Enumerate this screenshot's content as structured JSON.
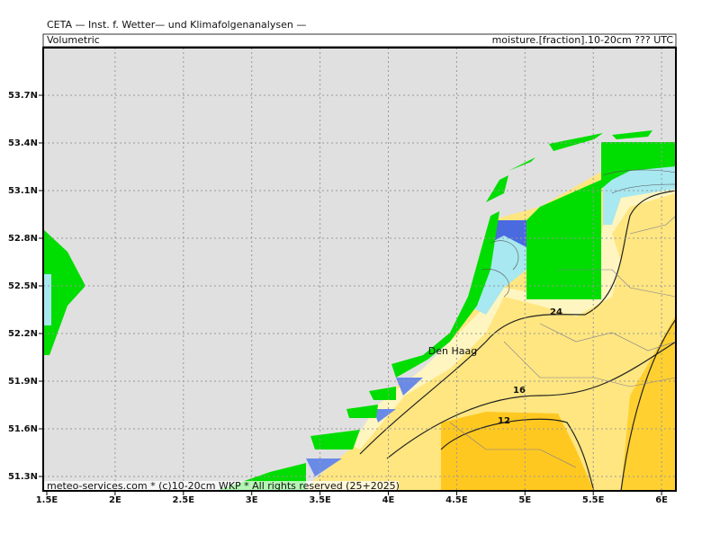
{
  "header": {
    "title": "CETA — Inst. f. Wetter— und Klimafolgenanalysen —",
    "left_label": "Volumetric",
    "right_label": "moisture.[fraction].10-20cm ??? UTC"
  },
  "axes": {
    "x_labels": [
      "1.5E",
      "2E",
      "2.5E",
      "3E",
      "3.5E",
      "4E",
      "4.5E",
      "5E",
      "5.5E",
      "6E"
    ],
    "y_labels": [
      "53.7N",
      "53.4N",
      "53.1N",
      "52.8N",
      "52.5N",
      "52.2N",
      "51.9N",
      "51.6N",
      "51.3N"
    ]
  },
  "map": {
    "place_label": "Den Haag",
    "contour_labels": [
      "24",
      "16",
      "12"
    ]
  },
  "footer": "meteo-services.com * (c)10-20cm WKP * All rights reserved (25+2025)"
}
